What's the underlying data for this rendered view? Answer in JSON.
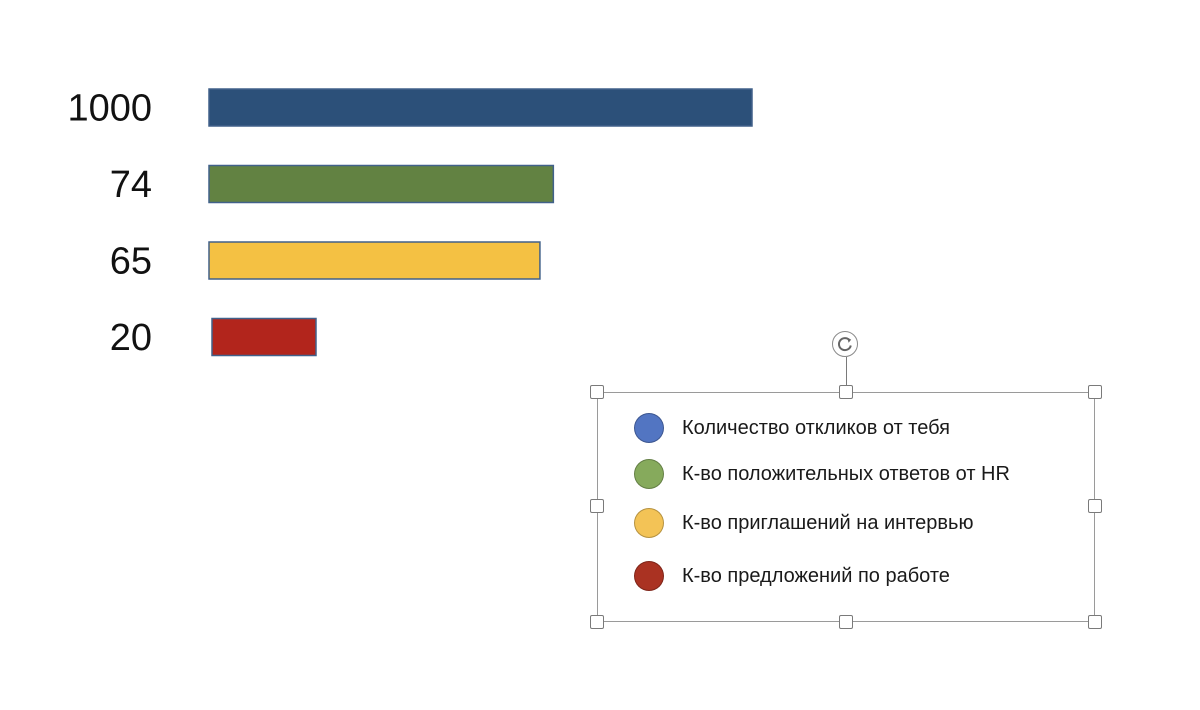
{
  "chart_data": {
    "type": "bar",
    "orientation": "horizontal",
    "categories": [
      "Количество откликов от тебя",
      "К-во положительных ответов от HR",
      "К-во приглашений на интервью",
      "К-во предложений по работе"
    ],
    "values": [
      1000,
      74,
      65,
      20
    ],
    "value_labels": [
      "1000",
      "74",
      "65",
      "20"
    ],
    "colors": [
      "#2c5079",
      "#628242",
      "#f4c143",
      "#b2251c"
    ],
    "legend_colors": [
      "#5275c2",
      "#86aa5c",
      "#f3c356",
      "#aa3222"
    ],
    "title": "",
    "xlabel": "",
    "ylabel": "",
    "grid": false,
    "legend_position": "bottom-right"
  }
}
